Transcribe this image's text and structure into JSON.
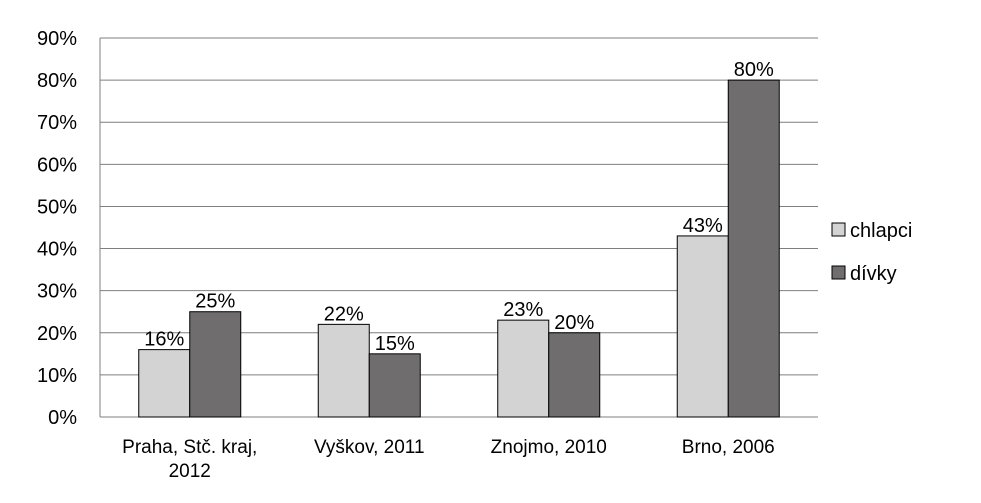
{
  "chart_data": {
    "type": "bar",
    "title": "",
    "xlabel": "",
    "ylabel": "",
    "ylim": [
      0,
      90
    ],
    "y_ticks": [
      "0%",
      "10%",
      "20%",
      "30%",
      "40%",
      "50%",
      "60%",
      "70%",
      "80%",
      "90%"
    ],
    "grid": true,
    "legend_position": "right",
    "categories": [
      [
        "Praha, Stč. kraj,",
        "2012"
      ],
      [
        "Vyškov, 2011"
      ],
      [
        "Znojmo, 2010"
      ],
      [
        "Brno, 2006"
      ]
    ],
    "series": [
      {
        "name": "chlapci",
        "color": "#d3d3d3",
        "values": [
          16,
          22,
          23,
          43
        ],
        "labels": [
          "16%",
          "22%",
          "23%",
          "43%"
        ]
      },
      {
        "name": "dívky",
        "color": "#6f6d6e",
        "values": [
          25,
          15,
          20,
          80
        ],
        "labels": [
          "25%",
          "15%",
          "20%",
          "80%"
        ]
      }
    ]
  }
}
